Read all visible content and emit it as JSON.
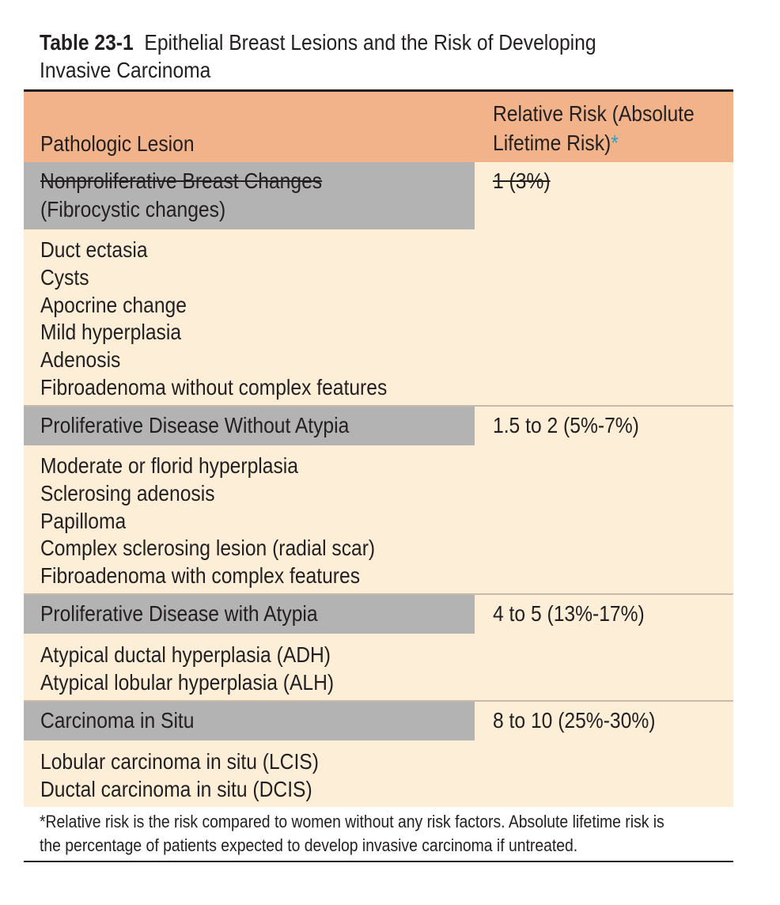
{
  "caption": {
    "number": "Table 23-1",
    "title_line1": "Epithelial Breast Lesions and the Risk of Developing",
    "title_line2": "Invasive Carcinoma"
  },
  "header": {
    "col1": "Pathologic Lesion",
    "col2_line1": "Relative Risk (Absolute",
    "col2_line2": "Lifetime Risk)",
    "asterisk": "*"
  },
  "groups": [
    {
      "heading_lines": [
        "Nonproliferative Breast Changes",
        "(Fibrocystic changes)"
      ],
      "risk": "1 (3%)",
      "items": [
        "Duct ectasia",
        "Cysts",
        "Apocrine change",
        "Mild hyperplasia",
        "Adenosis",
        "Fibroadenoma without complex features"
      ]
    },
    {
      "heading_lines": [
        "Proliferative Disease Without Atypia"
      ],
      "risk": "1.5 to 2 (5%-7%)",
      "items": [
        "Moderate or florid hyperplasia",
        "Sclerosing adenosis",
        "Papilloma",
        "Complex sclerosing lesion (radial scar)",
        "Fibroadenoma with complex features"
      ]
    },
    {
      "heading_lines": [
        "Proliferative Disease with Atypia"
      ],
      "risk": "4 to 5 (13%-17%)",
      "items": [
        "Atypical ductal hyperplasia (ADH)",
        "Atypical lobular hyperplasia (ALH)"
      ]
    },
    {
      "heading_lines": [
        "Carcinoma in Situ"
      ],
      "risk": "8 to 10 (25%-30%)",
      "items": [
        "Lobular carcinoma in situ (LCIS)",
        "Ductal carcinoma in situ (DCIS)"
      ]
    }
  ],
  "footnote": {
    "line1": "*Relative risk is the risk compared to women without any risk factors. Absolute lifetime risk is",
    "line2": "the percentage of patients expected to develop invasive carcinoma if untreated."
  },
  "colors": {
    "header_bg": "#f2b38b",
    "body_bg": "#fdeed8",
    "heading_bg": "#b3b3b3",
    "asterisk": "#2aa4c4"
  }
}
